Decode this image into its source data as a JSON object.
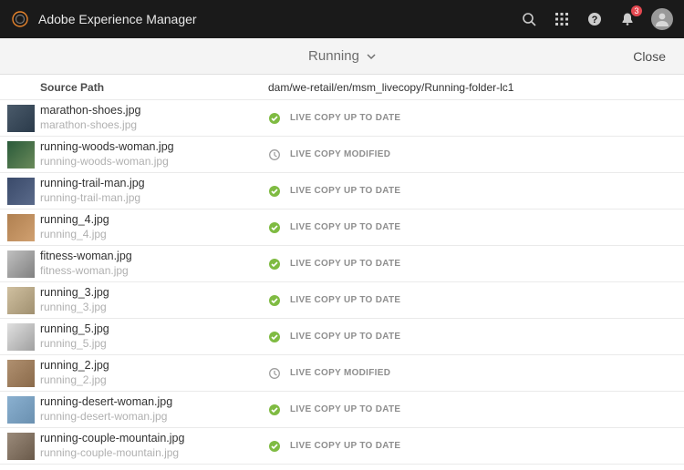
{
  "brand": {
    "name": "Adobe Experience Manager"
  },
  "notifications": {
    "count": "3"
  },
  "subbar": {
    "title": "Running",
    "close": "Close"
  },
  "headers": {
    "source": "Source Path",
    "path": "dam/we-retail/en/msm_livecopy/Running-folder-lc1"
  },
  "status_labels": {
    "uptodate": "LIVE COPY UP TO DATE",
    "modified": "LIVE COPY MODIFIED"
  },
  "colors": {
    "icon_ok": "#7fbb42",
    "icon_modified": "#9e9e9e"
  },
  "thumbs": [
    "linear-gradient(135deg,#4a5a6a,#2a3a4a)",
    "linear-gradient(135deg,#2a5a3a,#6a8a5a)",
    "linear-gradient(135deg,#3a4a6a,#5a6a8a)",
    "linear-gradient(135deg,#b08050,#d0a070)",
    "linear-gradient(135deg,#c0c0c0,#808080)",
    "linear-gradient(135deg,#d0c0a0,#a09070)",
    "linear-gradient(135deg,#e0e0e0,#a0a0a0)",
    "linear-gradient(135deg,#b09070,#8a6a4a)",
    "linear-gradient(135deg,#8ab0d0,#6a90b0)",
    "linear-gradient(135deg,#9a8a7a,#6a5a4a)"
  ],
  "rows": [
    {
      "name": "marathon-shoes.jpg",
      "sub": "marathon-shoes.jpg",
      "status": "uptodate"
    },
    {
      "name": "running-woods-woman.jpg",
      "sub": "running-woods-woman.jpg",
      "status": "modified"
    },
    {
      "name": "running-trail-man.jpg",
      "sub": "running-trail-man.jpg",
      "status": "uptodate"
    },
    {
      "name": "running_4.jpg",
      "sub": "running_4.jpg",
      "status": "uptodate"
    },
    {
      "name": "fitness-woman.jpg",
      "sub": "fitness-woman.jpg",
      "status": "uptodate"
    },
    {
      "name": "running_3.jpg",
      "sub": "running_3.jpg",
      "status": "uptodate"
    },
    {
      "name": "running_5.jpg",
      "sub": "running_5.jpg",
      "status": "uptodate"
    },
    {
      "name": "running_2.jpg",
      "sub": "running_2.jpg",
      "status": "modified"
    },
    {
      "name": "running-desert-woman.jpg",
      "sub": "running-desert-woman.jpg",
      "status": "uptodate"
    },
    {
      "name": "running-couple-mountain.jpg",
      "sub": "running-couple-mountain.jpg",
      "status": "uptodate"
    }
  ]
}
